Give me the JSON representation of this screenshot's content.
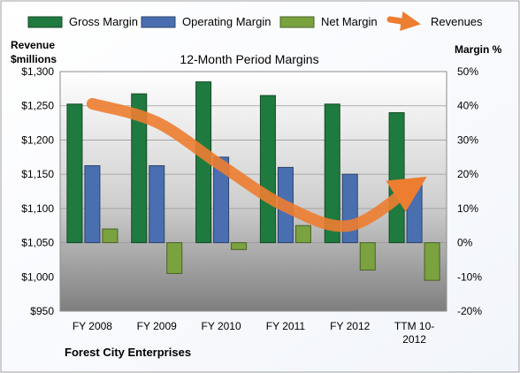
{
  "chart_data": {
    "type": "bar",
    "title": "12-Month Period Margins",
    "company": "Forest City Enterprises",
    "left_axis": {
      "label_line1": "Revenue",
      "label_line2": "$millions",
      "range": [
        950,
        1300
      ],
      "ticks": [
        950,
        1000,
        1050,
        1100,
        1150,
        1200,
        1250,
        1300
      ],
      "tick_labels": [
        "$950",
        "$1,000",
        "$1,050",
        "$1,100",
        "$1,150",
        "$1,200",
        "$1,250",
        "$1,300"
      ]
    },
    "right_axis": {
      "label": "Margin %",
      "range": [
        -20,
        50
      ],
      "ticks": [
        -20,
        -10,
        0,
        10,
        20,
        30,
        40,
        50
      ],
      "tick_labels": [
        "-20%",
        "-10%",
        "0%",
        "10%",
        "20%",
        "30%",
        "40%",
        "50%"
      ]
    },
    "categories": [
      [
        "FY 2008"
      ],
      [
        "FY 2009"
      ],
      [
        "FY 2010"
      ],
      [
        "FY 2011"
      ],
      [
        "FY 2012"
      ],
      [
        "TTM 10-",
        "2012"
      ]
    ],
    "series": [
      {
        "name": "Gross Margin",
        "axis": "right",
        "color": "#1f7a3f",
        "values": [
          40.5,
          43.5,
          47.0,
          43.0,
          40.5,
          38.0
        ]
      },
      {
        "name": "Operating Margin",
        "axis": "right",
        "color": "#4a6fb0",
        "values": [
          22.5,
          22.5,
          25.0,
          22.0,
          20.0,
          17.0
        ]
      },
      {
        "name": "Net Margin",
        "axis": "right",
        "color": "#7aa23f",
        "values": [
          4.0,
          -9.0,
          -2.0,
          5.0,
          -8.0,
          -11.0
        ]
      }
    ],
    "revenue_series": {
      "name": "Revenues",
      "axis": "left",
      "color": "#ed7d31",
      "values": [
        1253,
        1226,
        1163,
        1103,
        1075,
        1135
      ]
    },
    "legend_position": "top",
    "grid": true,
    "colors": {
      "plot_bg_top": "#ffffff",
      "plot_bg_bottom": "#7f7f7f",
      "frame": "#a0a0a0"
    }
  }
}
